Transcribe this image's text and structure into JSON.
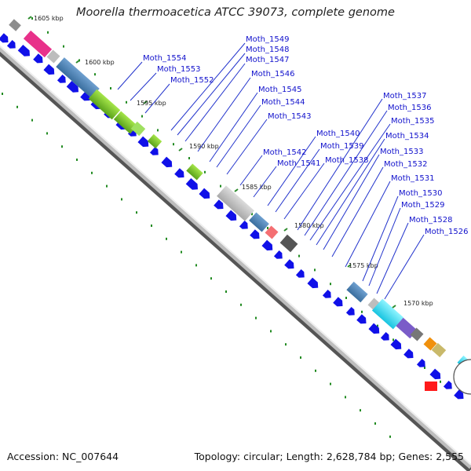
{
  "title": "Moorella thermoacetica ATCC 39073, complete genome",
  "footer": {
    "accession_text": "Accession: NC_007644",
    "stats_text": "Topology: circular; Length: 2,628,784 bp; Genes: 2,555"
  },
  "position_labels": [
    "1605 kbp",
    "1600 kbp",
    "1595 kbp",
    "1590 kbp",
    "1585 kbp",
    "1580 kbp",
    "1575 kbp",
    "1570 kbp"
  ],
  "gene_labels": [
    "Moth_1554",
    "Moth_1553",
    "Moth_1552",
    "Moth_1549",
    "Moth_1548",
    "Moth_1547",
    "Moth_1546",
    "Moth_1545",
    "Moth_1544",
    "Moth_1543",
    "Moth_1542",
    "Moth_1541",
    "Moth_1540",
    "Moth_1539",
    "Moth_1538",
    "Moth_1537",
    "Moth_1536",
    "Moth_1535",
    "Moth_1534",
    "Moth_1533",
    "Moth_1532",
    "Moth_1531",
    "Moth_1530",
    "Moth_1529",
    "Moth_1528",
    "Moth_1526"
  ],
  "colors": {
    "cds": "#1010e8",
    "callout": "#2233cc",
    "label": "#1111cc",
    "gc_skew": "#228b22",
    "backbone": "#999999"
  }
}
